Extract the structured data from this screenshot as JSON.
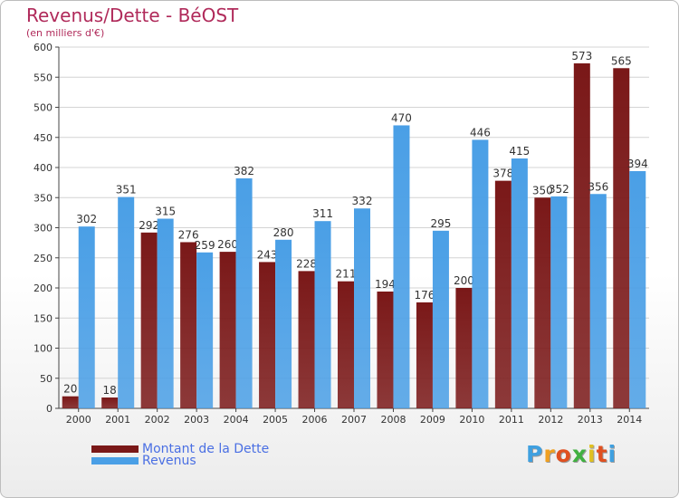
{
  "header": {
    "title": "Revenus/Dette - BéOST",
    "subtitle": "(en milliers d'€)"
  },
  "chart_data": {
    "type": "bar",
    "categories": [
      "2000",
      "2001",
      "2002",
      "2003",
      "2004",
      "2005",
      "2006",
      "2007",
      "2008",
      "2009",
      "2010",
      "2011",
      "2012",
      "2013",
      "2014"
    ],
    "series": [
      {
        "name": "Montant de la Dette",
        "color": "#7a1818",
        "values": [
          20,
          18,
          292,
          276,
          260,
          243,
          228,
          211,
          194,
          176,
          200,
          378,
          350,
          573,
          565
        ]
      },
      {
        "name": "Revenus",
        "color": "#4a9fe6",
        "values": [
          302,
          351,
          315,
          259,
          382,
          280,
          311,
          332,
          470,
          295,
          446,
          415,
          352,
          356,
          394
        ]
      }
    ],
    "yticks": [
      0,
      50,
      100,
      150,
      200,
      250,
      300,
      350,
      400,
      450,
      500,
      550,
      600
    ],
    "ylim": [
      0,
      600
    ],
    "grid": true,
    "legend_position": "bottom-left"
  },
  "logo": {
    "letters": [
      "P",
      "r",
      "o",
      "x",
      "i",
      "t",
      "i"
    ],
    "colors": [
      "#3fa0e0",
      "#f0a020",
      "#e05020",
      "#40b040",
      "#e0c020",
      "#e05020",
      "#3fa0e0"
    ]
  }
}
